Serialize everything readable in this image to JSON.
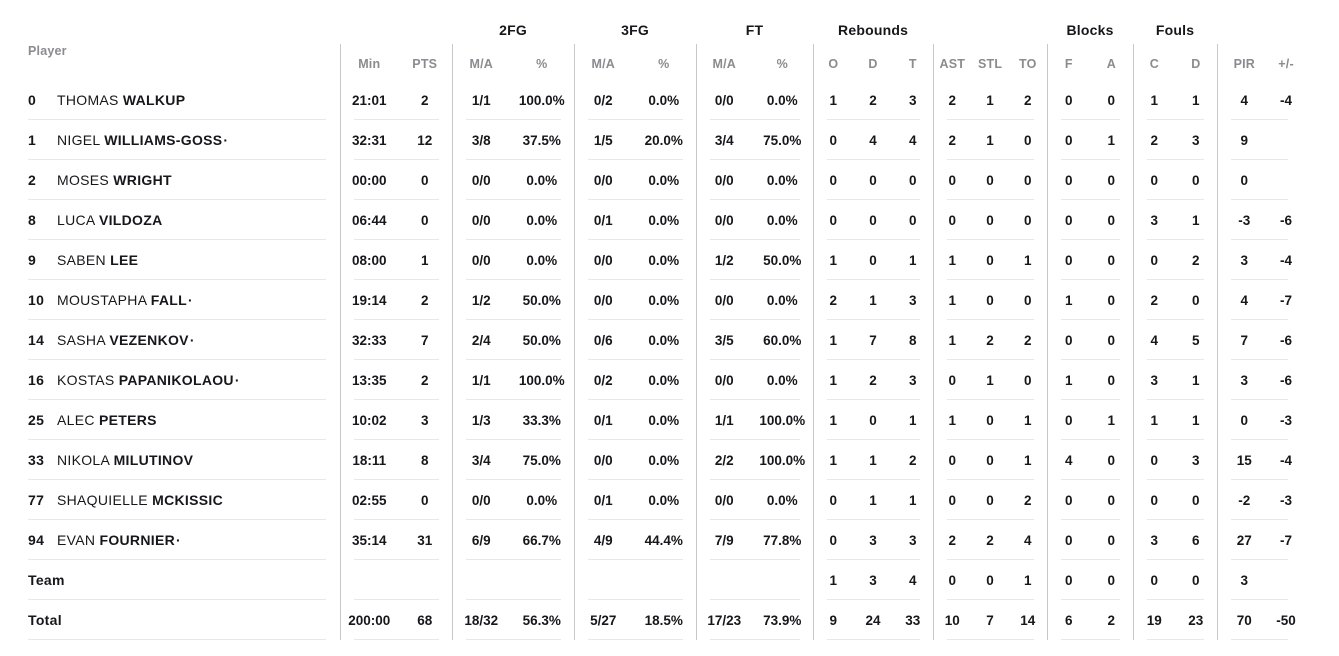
{
  "colors": {
    "data_text": "#17171b",
    "header_text": "#8b8b90",
    "row_line": "#e8e8ea",
    "divider": "#c9c9cb",
    "background": "#ffffff"
  },
  "table": {
    "group_headers": {
      "fg2": "2FG",
      "fg3": "3FG",
      "ft": "FT",
      "reb": "Rebounds",
      "blk": "Blocks",
      "fouls": "Fouls"
    },
    "sub_headers": [
      "Player",
      "Min",
      "PTS",
      "M/A",
      "%",
      "M/A",
      "%",
      "M/A",
      "%",
      "O",
      "D",
      "T",
      "AST",
      "STL",
      "TO",
      "F",
      "A",
      "C",
      "D",
      "PIR",
      "+/-"
    ],
    "starter_mark": "·",
    "rows": [
      {
        "number": "0",
        "first_name": "THOMAS",
        "last_name": "WALKUP",
        "starter": false,
        "min": "21:01",
        "pts": "2",
        "fg2_ma": "1/1",
        "fg2_pct": "100.0%",
        "fg3_ma": "0/2",
        "fg3_pct": "0.0%",
        "ft_ma": "0/0",
        "ft_pct": "0.0%",
        "reb_o": "1",
        "reb_d": "2",
        "reb_t": "3",
        "ast": "2",
        "stl": "1",
        "to": "2",
        "blk_f": "0",
        "blk_a": "0",
        "foul_c": "1",
        "foul_d": "1",
        "pir": "4",
        "plus_minus": "-4"
      },
      {
        "number": "1",
        "first_name": "NIGEL",
        "last_name": "WILLIAMS-GOSS",
        "starter": true,
        "min": "32:31",
        "pts": "12",
        "fg2_ma": "3/8",
        "fg2_pct": "37.5%",
        "fg3_ma": "1/5",
        "fg3_pct": "20.0%",
        "ft_ma": "3/4",
        "ft_pct": "75.0%",
        "reb_o": "0",
        "reb_d": "4",
        "reb_t": "4",
        "ast": "2",
        "stl": "1",
        "to": "0",
        "blk_f": "0",
        "blk_a": "1",
        "foul_c": "2",
        "foul_d": "3",
        "pir": "9",
        "plus_minus": ""
      },
      {
        "number": "2",
        "first_name": "MOSES",
        "last_name": "WRIGHT",
        "starter": false,
        "min": "00:00",
        "pts": "0",
        "fg2_ma": "0/0",
        "fg2_pct": "0.0%",
        "fg3_ma": "0/0",
        "fg3_pct": "0.0%",
        "ft_ma": "0/0",
        "ft_pct": "0.0%",
        "reb_o": "0",
        "reb_d": "0",
        "reb_t": "0",
        "ast": "0",
        "stl": "0",
        "to": "0",
        "blk_f": "0",
        "blk_a": "0",
        "foul_c": "0",
        "foul_d": "0",
        "pir": "0",
        "plus_minus": ""
      },
      {
        "number": "8",
        "first_name": "LUCA",
        "last_name": "VILDOZA",
        "starter": false,
        "min": "06:44",
        "pts": "0",
        "fg2_ma": "0/0",
        "fg2_pct": "0.0%",
        "fg3_ma": "0/1",
        "fg3_pct": "0.0%",
        "ft_ma": "0/0",
        "ft_pct": "0.0%",
        "reb_o": "0",
        "reb_d": "0",
        "reb_t": "0",
        "ast": "0",
        "stl": "0",
        "to": "0",
        "blk_f": "0",
        "blk_a": "0",
        "foul_c": "3",
        "foul_d": "1",
        "pir": "-3",
        "plus_minus": "-6"
      },
      {
        "number": "9",
        "first_name": "SABEN",
        "last_name": "LEE",
        "starter": false,
        "min": "08:00",
        "pts": "1",
        "fg2_ma": "0/0",
        "fg2_pct": "0.0%",
        "fg3_ma": "0/0",
        "fg3_pct": "0.0%",
        "ft_ma": "1/2",
        "ft_pct": "50.0%",
        "reb_o": "1",
        "reb_d": "0",
        "reb_t": "1",
        "ast": "1",
        "stl": "0",
        "to": "1",
        "blk_f": "0",
        "blk_a": "0",
        "foul_c": "0",
        "foul_d": "2",
        "pir": "3",
        "plus_minus": "-4"
      },
      {
        "number": "10",
        "first_name": "MOUSTAPHA",
        "last_name": "FALL",
        "starter": true,
        "min": "19:14",
        "pts": "2",
        "fg2_ma": "1/2",
        "fg2_pct": "50.0%",
        "fg3_ma": "0/0",
        "fg3_pct": "0.0%",
        "ft_ma": "0/0",
        "ft_pct": "0.0%",
        "reb_o": "2",
        "reb_d": "1",
        "reb_t": "3",
        "ast": "1",
        "stl": "0",
        "to": "0",
        "blk_f": "1",
        "blk_a": "0",
        "foul_c": "2",
        "foul_d": "0",
        "pir": "4",
        "plus_minus": "-7"
      },
      {
        "number": "14",
        "first_name": "SASHA",
        "last_name": "VEZENKOV",
        "starter": true,
        "min": "32:33",
        "pts": "7",
        "fg2_ma": "2/4",
        "fg2_pct": "50.0%",
        "fg3_ma": "0/6",
        "fg3_pct": "0.0%",
        "ft_ma": "3/5",
        "ft_pct": "60.0%",
        "reb_o": "1",
        "reb_d": "7",
        "reb_t": "8",
        "ast": "1",
        "stl": "2",
        "to": "2",
        "blk_f": "0",
        "blk_a": "0",
        "foul_c": "4",
        "foul_d": "5",
        "pir": "7",
        "plus_minus": "-6"
      },
      {
        "number": "16",
        "first_name": "KOSTAS",
        "last_name": "PAPANIKOLAOU",
        "starter": true,
        "min": "13:35",
        "pts": "2",
        "fg2_ma": "1/1",
        "fg2_pct": "100.0%",
        "fg3_ma": "0/2",
        "fg3_pct": "0.0%",
        "ft_ma": "0/0",
        "ft_pct": "0.0%",
        "reb_o": "1",
        "reb_d": "2",
        "reb_t": "3",
        "ast": "0",
        "stl": "1",
        "to": "0",
        "blk_f": "1",
        "blk_a": "0",
        "foul_c": "3",
        "foul_d": "1",
        "pir": "3",
        "plus_minus": "-6"
      },
      {
        "number": "25",
        "first_name": "ALEC",
        "last_name": "PETERS",
        "starter": false,
        "min": "10:02",
        "pts": "3",
        "fg2_ma": "1/3",
        "fg2_pct": "33.3%",
        "fg3_ma": "0/1",
        "fg3_pct": "0.0%",
        "ft_ma": "1/1",
        "ft_pct": "100.0%",
        "reb_o": "1",
        "reb_d": "0",
        "reb_t": "1",
        "ast": "1",
        "stl": "0",
        "to": "1",
        "blk_f": "0",
        "blk_a": "1",
        "foul_c": "1",
        "foul_d": "1",
        "pir": "0",
        "plus_minus": "-3"
      },
      {
        "number": "33",
        "first_name": "NIKOLA",
        "last_name": "MILUTINOV",
        "starter": false,
        "min": "18:11",
        "pts": "8",
        "fg2_ma": "3/4",
        "fg2_pct": "75.0%",
        "fg3_ma": "0/0",
        "fg3_pct": "0.0%",
        "ft_ma": "2/2",
        "ft_pct": "100.0%",
        "reb_o": "1",
        "reb_d": "1",
        "reb_t": "2",
        "ast": "0",
        "stl": "0",
        "to": "1",
        "blk_f": "4",
        "blk_a": "0",
        "foul_c": "0",
        "foul_d": "3",
        "pir": "15",
        "plus_minus": "-4"
      },
      {
        "number": "77",
        "first_name": "SHAQUIELLE",
        "last_name": "MCKISSIC",
        "starter": false,
        "min": "02:55",
        "pts": "0",
        "fg2_ma": "0/0",
        "fg2_pct": "0.0%",
        "fg3_ma": "0/1",
        "fg3_pct": "0.0%",
        "ft_ma": "0/0",
        "ft_pct": "0.0%",
        "reb_o": "0",
        "reb_d": "1",
        "reb_t": "1",
        "ast": "0",
        "stl": "0",
        "to": "2",
        "blk_f": "0",
        "blk_a": "0",
        "foul_c": "0",
        "foul_d": "0",
        "pir": "-2",
        "plus_minus": "-3"
      },
      {
        "number": "94",
        "first_name": "EVAN",
        "last_name": "FOURNIER",
        "starter": true,
        "min": "35:14",
        "pts": "31",
        "fg2_ma": "6/9",
        "fg2_pct": "66.7%",
        "fg3_ma": "4/9",
        "fg3_pct": "44.4%",
        "ft_ma": "7/9",
        "ft_pct": "77.8%",
        "reb_o": "0",
        "reb_d": "3",
        "reb_t": "3",
        "ast": "2",
        "stl": "2",
        "to": "4",
        "blk_f": "0",
        "blk_a": "0",
        "foul_c": "3",
        "foul_d": "6",
        "pir": "27",
        "plus_minus": "-7"
      }
    ],
    "team_row": {
      "label": "Team",
      "min": "",
      "pts": "",
      "fg2_ma": "",
      "fg2_pct": "",
      "fg3_ma": "",
      "fg3_pct": "",
      "ft_ma": "",
      "ft_pct": "",
      "reb_o": "1",
      "reb_d": "3",
      "reb_t": "4",
      "ast": "0",
      "stl": "0",
      "to": "1",
      "blk_f": "0",
      "blk_a": "0",
      "foul_c": "0",
      "foul_d": "0",
      "pir": "3",
      "plus_minus": ""
    },
    "total_row": {
      "label": "Total",
      "min": "200:00",
      "pts": "68",
      "fg2_ma": "18/32",
      "fg2_pct": "56.3%",
      "fg3_ma": "5/27",
      "fg3_pct": "18.5%",
      "ft_ma": "17/23",
      "ft_pct": "73.9%",
      "reb_o": "9",
      "reb_d": "24",
      "reb_t": "33",
      "ast": "10",
      "stl": "7",
      "to": "14",
      "blk_f": "6",
      "blk_a": "2",
      "foul_c": "19",
      "foul_d": "23",
      "pir": "70",
      "plus_minus": "-50"
    }
  }
}
